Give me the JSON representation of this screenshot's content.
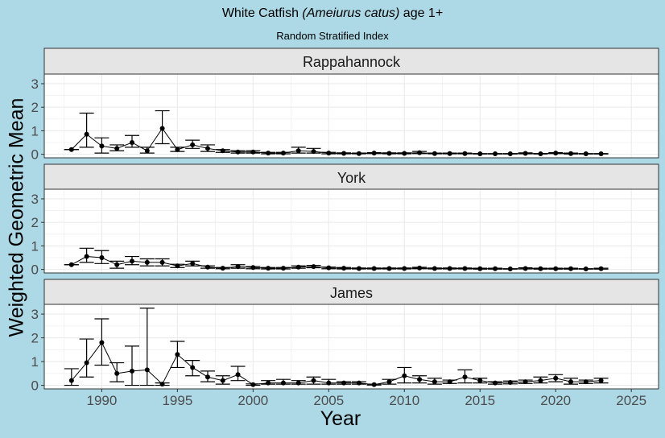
{
  "chart_data": {
    "type": "line",
    "title_main": "White Catfish ",
    "title_species": "(Ameiurus catus)",
    "title_suffix": " age 1+",
    "subtitle": "Random Stratified Index",
    "xlabel": "Year",
    "ylabel": "Weighted Geometric Mean",
    "xlim": [
      1986.2,
      2026.8
    ],
    "ylim": [
      -0.15,
      3.41
    ],
    "xticks": [
      1990,
      1995,
      2000,
      2005,
      2010,
      2015,
      2020,
      2025
    ],
    "yticks": [
      0,
      1,
      2,
      3
    ],
    "grid": true,
    "point_format": [
      "year",
      "mean",
      "lower",
      "upper"
    ],
    "facets": [
      {
        "name": "Rappahannock",
        "points": [
          [
            1988,
            0.2,
            0.2,
            0.2
          ],
          [
            1989,
            0.85,
            0.3,
            1.75
          ],
          [
            1990,
            0.35,
            0.05,
            0.7
          ],
          [
            1991,
            0.25,
            0.15,
            0.4
          ],
          [
            1992,
            0.5,
            0.3,
            0.8
          ],
          [
            1993,
            0.15,
            0.05,
            0.3
          ],
          [
            1994,
            1.1,
            0.45,
            1.85
          ],
          [
            1995,
            0.2,
            0.12,
            0.3
          ],
          [
            1996,
            0.4,
            0.25,
            0.6
          ],
          [
            1997,
            0.25,
            0.12,
            0.4
          ],
          [
            1998,
            0.15,
            0.08,
            0.2
          ],
          [
            1999,
            0.1,
            0.05,
            0.15
          ],
          [
            2000,
            0.1,
            0.05,
            0.15
          ],
          [
            2001,
            0.05,
            0.02,
            0.08
          ],
          [
            2002,
            0.05,
            0.02,
            0.08
          ],
          [
            2003,
            0.15,
            0.05,
            0.3
          ],
          [
            2004,
            0.12,
            0.05,
            0.25
          ],
          [
            2005,
            0.05,
            0.02,
            0.08
          ],
          [
            2006,
            0.04,
            0.02,
            0.06
          ],
          [
            2007,
            0.03,
            0.02,
            0.05
          ],
          [
            2008,
            0.05,
            0.03,
            0.07
          ],
          [
            2009,
            0.04,
            0.02,
            0.06
          ],
          [
            2010,
            0.04,
            0.02,
            0.06
          ],
          [
            2011,
            0.07,
            0.03,
            0.12
          ],
          [
            2012,
            0.03,
            0.02,
            0.05
          ],
          [
            2013,
            0.03,
            0.02,
            0.05
          ],
          [
            2014,
            0.03,
            0.02,
            0.05
          ],
          [
            2015,
            0.02,
            0.01,
            0.03
          ],
          [
            2016,
            0.02,
            0.01,
            0.03
          ],
          [
            2017,
            0.02,
            0.01,
            0.03
          ],
          [
            2018,
            0.04,
            0.02,
            0.06
          ],
          [
            2019,
            0.02,
            0.01,
            0.03
          ],
          [
            2020,
            0.05,
            0.03,
            0.07
          ],
          [
            2021,
            0.03,
            0.01,
            0.05
          ],
          [
            2022,
            0.02,
            0.01,
            0.03
          ],
          [
            2023,
            0.02,
            0.01,
            0.03
          ]
        ]
      },
      {
        "name": "York",
        "points": [
          [
            1988,
            0.2,
            0.2,
            0.2
          ],
          [
            1989,
            0.55,
            0.3,
            0.9
          ],
          [
            1990,
            0.5,
            0.25,
            0.8
          ],
          [
            1991,
            0.2,
            0.05,
            0.35
          ],
          [
            1992,
            0.35,
            0.2,
            0.55
          ],
          [
            1993,
            0.3,
            0.15,
            0.45
          ],
          [
            1994,
            0.3,
            0.15,
            0.45
          ],
          [
            1995,
            0.15,
            0.08,
            0.22
          ],
          [
            1996,
            0.25,
            0.15,
            0.35
          ],
          [
            1997,
            0.1,
            0.05,
            0.15
          ],
          [
            1998,
            0.05,
            0.03,
            0.08
          ],
          [
            1999,
            0.12,
            0.05,
            0.2
          ],
          [
            2000,
            0.08,
            0.03,
            0.12
          ],
          [
            2001,
            0.05,
            0.02,
            0.08
          ],
          [
            2002,
            0.05,
            0.02,
            0.08
          ],
          [
            2003,
            0.1,
            0.05,
            0.15
          ],
          [
            2004,
            0.12,
            0.07,
            0.17
          ],
          [
            2005,
            0.07,
            0.03,
            0.1
          ],
          [
            2006,
            0.05,
            0.02,
            0.08
          ],
          [
            2007,
            0.04,
            0.02,
            0.06
          ],
          [
            2008,
            0.04,
            0.02,
            0.06
          ],
          [
            2009,
            0.04,
            0.02,
            0.06
          ],
          [
            2010,
            0.04,
            0.02,
            0.06
          ],
          [
            2011,
            0.06,
            0.03,
            0.09
          ],
          [
            2012,
            0.04,
            0.02,
            0.06
          ],
          [
            2013,
            0.04,
            0.02,
            0.06
          ],
          [
            2014,
            0.04,
            0.02,
            0.06
          ],
          [
            2015,
            0.03,
            0.01,
            0.05
          ],
          [
            2016,
            0.03,
            0.01,
            0.05
          ],
          [
            2017,
            0.02,
            0.01,
            0.03
          ],
          [
            2018,
            0.04,
            0.02,
            0.07
          ],
          [
            2019,
            0.03,
            0.01,
            0.05
          ],
          [
            2020,
            0.03,
            0.01,
            0.05
          ],
          [
            2021,
            0.03,
            0.01,
            0.05
          ],
          [
            2022,
            0.02,
            0.01,
            0.03
          ],
          [
            2023,
            0.03,
            0.01,
            0.05
          ]
        ]
      },
      {
        "name": "James",
        "points": [
          [
            1988,
            0.2,
            0.0,
            0.7
          ],
          [
            1989,
            0.95,
            0.35,
            1.95
          ],
          [
            1990,
            1.8,
            0.85,
            2.8
          ],
          [
            1991,
            0.5,
            0.15,
            0.95
          ],
          [
            1992,
            0.6,
            0.0,
            1.65
          ],
          [
            1993,
            0.65,
            0.0,
            3.25
          ],
          [
            1994,
            0.05,
            0.0,
            0.1
          ],
          [
            1995,
            1.3,
            0.75,
            1.85
          ],
          [
            1996,
            0.75,
            0.4,
            1.05
          ],
          [
            1997,
            0.35,
            0.15,
            0.6
          ],
          [
            1998,
            0.2,
            0.05,
            0.4
          ],
          [
            1999,
            0.45,
            0.2,
            0.8
          ],
          [
            2000,
            0.03,
            0.0,
            0.06
          ],
          [
            2001,
            0.1,
            0.05,
            0.2
          ],
          [
            2002,
            0.1,
            0.05,
            0.25
          ],
          [
            2003,
            0.1,
            0.05,
            0.2
          ],
          [
            2004,
            0.2,
            0.05,
            0.35
          ],
          [
            2005,
            0.1,
            0.05,
            0.25
          ],
          [
            2006,
            0.1,
            0.05,
            0.15
          ],
          [
            2007,
            0.1,
            0.05,
            0.15
          ],
          [
            2008,
            0.03,
            0.01,
            0.05
          ],
          [
            2009,
            0.15,
            0.05,
            0.25
          ],
          [
            2010,
            0.4,
            0.1,
            0.75
          ],
          [
            2011,
            0.25,
            0.1,
            0.4
          ],
          [
            2012,
            0.15,
            0.05,
            0.3
          ],
          [
            2013,
            0.15,
            0.08,
            0.22
          ],
          [
            2014,
            0.35,
            0.1,
            0.65
          ],
          [
            2015,
            0.2,
            0.1,
            0.3
          ],
          [
            2016,
            0.1,
            0.05,
            0.15
          ],
          [
            2017,
            0.12,
            0.06,
            0.18
          ],
          [
            2018,
            0.15,
            0.08,
            0.22
          ],
          [
            2019,
            0.2,
            0.1,
            0.35
          ],
          [
            2020,
            0.3,
            0.15,
            0.45
          ],
          [
            2021,
            0.15,
            0.05,
            0.3
          ],
          [
            2022,
            0.15,
            0.08,
            0.22
          ],
          [
            2023,
            0.2,
            0.1,
            0.3
          ]
        ]
      }
    ]
  }
}
